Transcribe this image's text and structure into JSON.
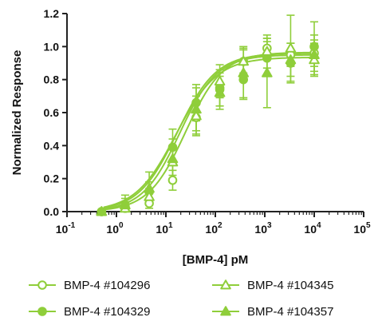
{
  "chart_data": {
    "type": "scatter",
    "x_scale": "log",
    "xlabel": "[BMP-4] pM",
    "ylabel": "Normalized Response",
    "xlim": [
      0.1,
      100000
    ],
    "ylim": [
      0,
      1.2
    ],
    "x_ticks": [
      0.1,
      1,
      10,
      100,
      1000,
      10000,
      100000
    ],
    "x_tick_labels": [
      {
        "base": "10",
        "exp": "-1"
      },
      {
        "base": "10",
        "exp": "0"
      },
      {
        "base": "10",
        "exp": "1"
      },
      {
        "base": "10",
        "exp": "2"
      },
      {
        "base": "10",
        "exp": "3"
      },
      {
        "base": "10",
        "exp": "4"
      },
      {
        "base": "10",
        "exp": "5"
      }
    ],
    "y_ticks": [
      0,
      0.2,
      0.4,
      0.6,
      0.8,
      1.0,
      1.2
    ],
    "y_tick_labels": [
      "0.0",
      "0.2",
      "0.4",
      "0.6",
      "0.8",
      "1.0",
      "1.2"
    ],
    "grid": false,
    "legend_position": "bottom",
    "x": [
      0.5,
      1.5,
      4.6,
      13.7,
      41,
      123,
      370,
      1111,
      3333,
      10000
    ],
    "series": [
      {
        "name": "BMP-4 #104296",
        "marker": "circle-open",
        "color": "#8fce3a",
        "values": [
          0.0,
          0.02,
          0.05,
          0.19,
          0.57,
          0.74,
          0.91,
          0.99,
          0.95,
          0.96
        ],
        "errors": [
          0.0,
          0.03,
          0.03,
          0.06,
          0.1,
          0.1,
          0.09,
          0.06,
          0.07,
          0.08
        ],
        "fit": {
          "bottom": 0.0,
          "top": 0.965,
          "ec50": 25,
          "hill": 1.15
        }
      },
      {
        "name": "BMP-4 #104329",
        "marker": "circle-filled",
        "color": "#8fce3a",
        "values": [
          0.0,
          0.03,
          0.12,
          0.39,
          0.66,
          0.75,
          0.8,
          0.93,
          0.9,
          1.0
        ],
        "errors": [
          0.0,
          0.05,
          0.06,
          0.11,
          0.11,
          0.11,
          0.12,
          0.1,
          0.12,
          0.15
        ],
        "fit": {
          "bottom": 0.0,
          "top": 0.96,
          "ec50": 17,
          "hill": 1.1
        }
      },
      {
        "name": "BMP-4 #104345",
        "marker": "triangle-open",
        "color": "#8fce3a",
        "values": [
          0.0,
          0.02,
          0.09,
          0.3,
          0.58,
          0.79,
          0.91,
          0.97,
          0.99,
          0.92
        ],
        "errors": [
          0.0,
          0.04,
          0.05,
          0.08,
          0.12,
          0.1,
          0.07,
          0.1,
          0.2,
          0.1
        ],
        "fit": {
          "bottom": 0.0,
          "top": 0.95,
          "ec50": 19,
          "hill": 1.15
        }
      },
      {
        "name": "BMP-4 #104357",
        "marker": "triangle-filled",
        "color": "#8fce3a",
        "values": [
          0.0,
          0.04,
          0.14,
          0.32,
          0.62,
          0.72,
          0.84,
          0.84,
          0.92,
          0.95
        ],
        "errors": [
          0.0,
          0.06,
          0.1,
          0.12,
          0.13,
          0.1,
          0.15,
          0.21,
          0.1,
          0.12
        ],
        "fit": {
          "bottom": 0.0,
          "top": 0.935,
          "ec50": 16,
          "hill": 1.05
        }
      }
    ]
  }
}
